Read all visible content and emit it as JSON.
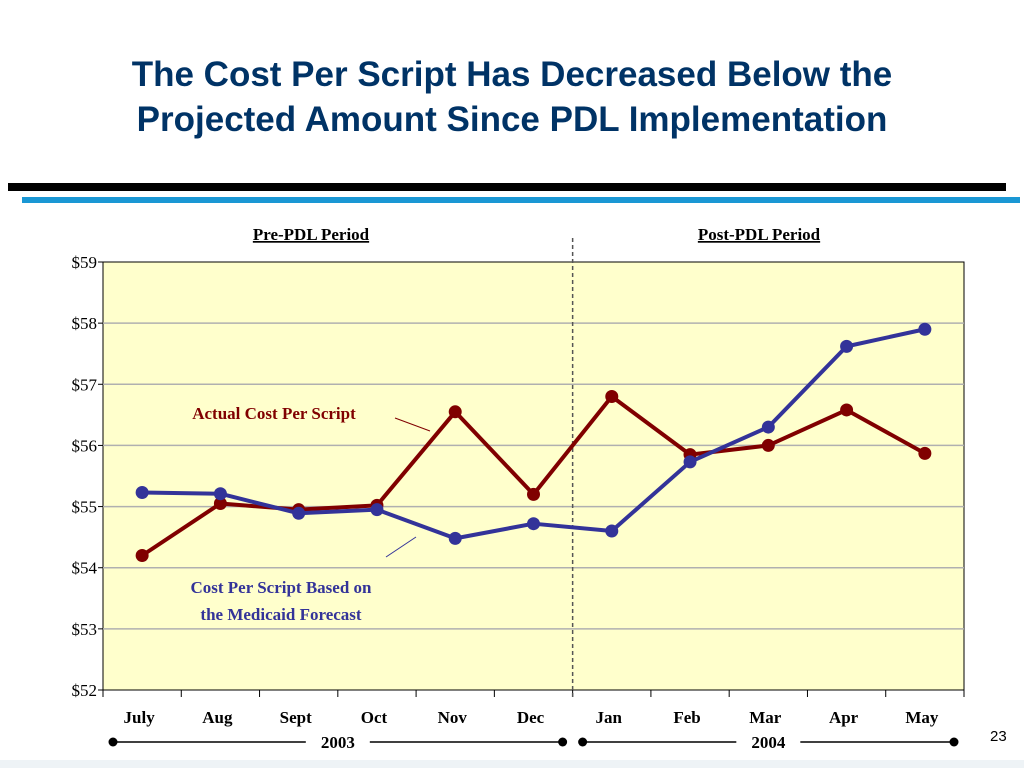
{
  "slide": {
    "title_line1": "The Cost Per Script Has Decreased Below the",
    "title_line2": "Projected Amount Since PDL Implementation",
    "page_number": "23"
  },
  "chart_data": {
    "type": "line",
    "categories": [
      "July",
      "Aug",
      "Sept",
      "Oct",
      "Nov",
      "Dec",
      "Jan",
      "Feb",
      "Mar",
      "Apr",
      "May"
    ],
    "year_labels": [
      {
        "label": "2003",
        "from": "July",
        "to": "Dec"
      },
      {
        "label": "2004",
        "from": "Jan",
        "to": "May"
      }
    ],
    "period_labels": {
      "pre": "Pre-PDL Period",
      "post": "Post-PDL Period"
    },
    "period_divider_between": [
      "Dec",
      "Jan"
    ],
    "y_ticks": [
      "$52",
      "$53",
      "$54",
      "$55",
      "$56",
      "$57",
      "$58",
      "$59"
    ],
    "ylim": [
      52,
      59
    ],
    "grid": true,
    "series": [
      {
        "name": "Actual Cost Per Script",
        "color": "#800000",
        "values": [
          54.2,
          55.05,
          54.95,
          55.02,
          56.55,
          55.2,
          56.8,
          55.85,
          56.0,
          56.58,
          55.87
        ]
      },
      {
        "name": "Cost Per Script Based on the Medicaid Forecast",
        "label_lines": [
          "Cost Per Script Based on",
          "the Medicaid Forecast"
        ],
        "color": "#333399",
        "values": [
          55.23,
          55.21,
          54.89,
          54.95,
          54.48,
          54.72,
          54.6,
          55.73,
          56.3,
          57.62,
          57.9
        ]
      }
    ],
    "colors": {
      "plot_bg": "#ffffcc",
      "grid": "#b0b0b0"
    }
  }
}
